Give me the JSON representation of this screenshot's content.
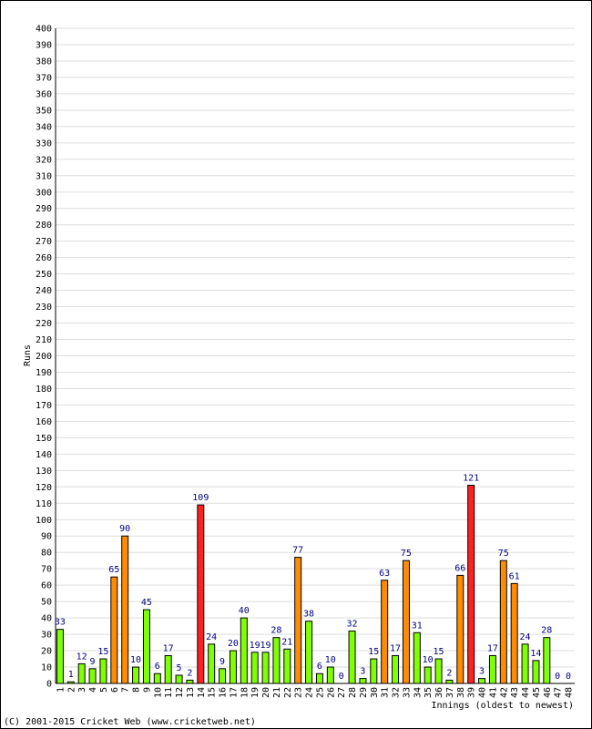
{
  "chart_data": {
    "type": "bar",
    "xlabel": "Innings (oldest to newest)",
    "ylabel": "Runs",
    "ylim": [
      0,
      400
    ],
    "ytick_step": 10,
    "grid": true,
    "categories": [
      "1",
      "2",
      "3",
      "4",
      "5",
      "6",
      "7",
      "8",
      "9",
      "10",
      "11",
      "12",
      "13",
      "14",
      "15",
      "16",
      "17",
      "18",
      "19",
      "20",
      "21",
      "22",
      "23",
      "24",
      "25",
      "26",
      "27",
      "28",
      "29",
      "30",
      "31",
      "32",
      "33",
      "34",
      "35",
      "36",
      "37",
      "38",
      "39",
      "40",
      "41",
      "42",
      "43",
      "44",
      "45",
      "46",
      "47",
      "48"
    ],
    "values": [
      33,
      1,
      12,
      9,
      15,
      65,
      90,
      10,
      45,
      6,
      17,
      5,
      2,
      109,
      24,
      9,
      20,
      40,
      19,
      19,
      28,
      21,
      77,
      38,
      6,
      10,
      0,
      32,
      3,
      15,
      63,
      17,
      75,
      31,
      10,
      15,
      2,
      66,
      121,
      3,
      17,
      75,
      61,
      24,
      14,
      28,
      0,
      0
    ],
    "colors": {
      "under_50": "#7fff00",
      "fifty": "#ff8c00",
      "hundred": "#ff2020",
      "label": "#000080",
      "grid": "#dddddd"
    },
    "footer": "(C) 2001-2015 Cricket Web (www.cricketweb.net)"
  }
}
